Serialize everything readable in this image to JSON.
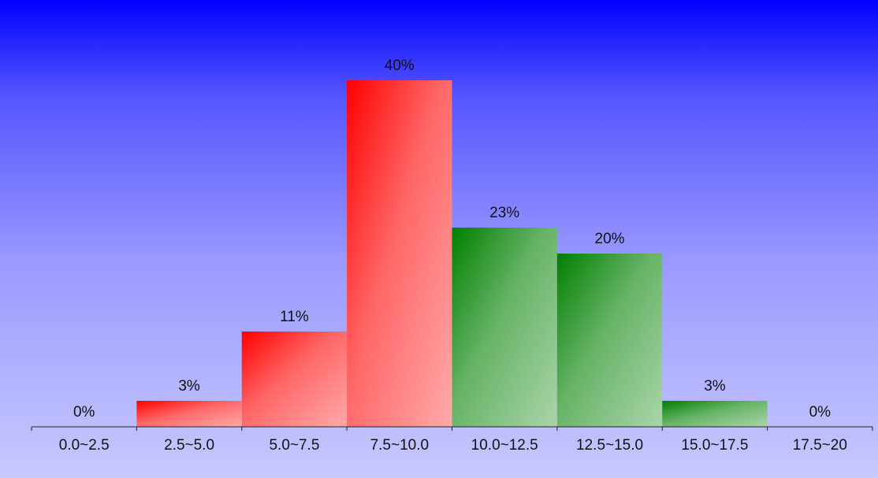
{
  "chart_data": {
    "type": "bar",
    "categories": [
      "0.0~2.5",
      "2.5~5.0",
      "5.0~7.5",
      "7.5~10.0",
      "10.0~12.5",
      "12.5~15.0",
      "15.0~17.5",
      "17.5~20"
    ],
    "values": [
      0,
      3,
      11,
      40,
      23,
      20,
      3,
      0
    ],
    "value_labels": [
      "0%",
      "3%",
      "11%",
      "40%",
      "23%",
      "20%",
      "3%",
      "0%"
    ],
    "bar_colors": [
      "#ff0000",
      "#ff0000",
      "#ff0000",
      "#ff0000",
      "#008000",
      "#008000",
      "#008000",
      "#008000"
    ],
    "ylim": [
      0,
      40
    ],
    "grid": false,
    "legend": "none"
  }
}
